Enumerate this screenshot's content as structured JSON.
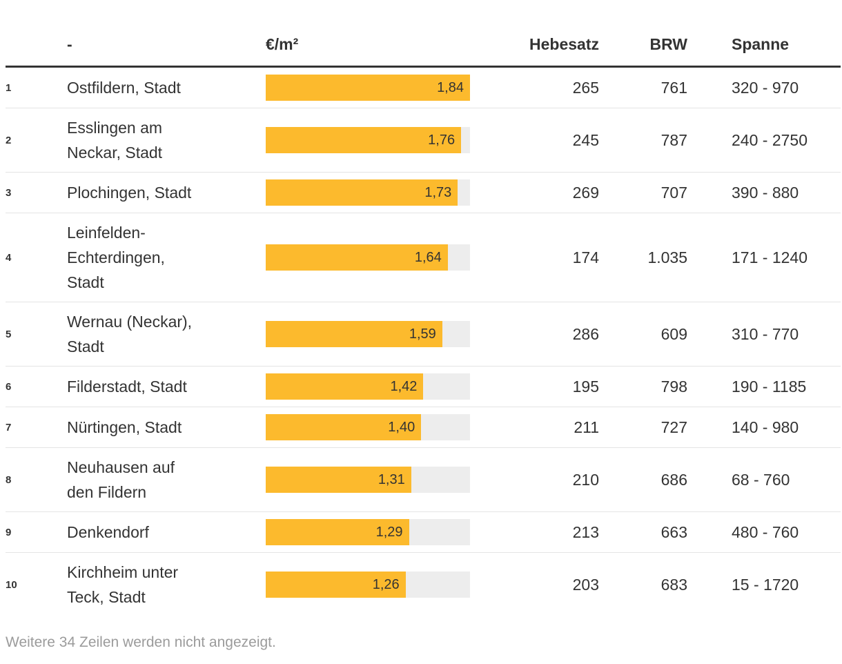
{
  "chart_data": {
    "type": "table",
    "columns": [
      "",
      "-",
      "€/m²",
      "Hebesatz",
      "BRW",
      "Spanne"
    ],
    "bar_column": "€/m²",
    "bar_axis_max": 1.84,
    "rows": [
      {
        "rank": "1",
        "name": "Ostfildern, Stadt",
        "value": 1.84,
        "value_label": "1,84",
        "bar_pct": 100,
        "hebesatz": "265",
        "brw": "761",
        "spanne": "320 - 970"
      },
      {
        "rank": "2",
        "name": "Esslingen am Neckar, Stadt",
        "value": 1.76,
        "value_label": "1,76",
        "bar_pct": 95.65,
        "hebesatz": "245",
        "brw": "787",
        "spanne": "240 - 2750"
      },
      {
        "rank": "3",
        "name": "Plochingen, Stadt",
        "value": 1.73,
        "value_label": "1,73",
        "bar_pct": 94.02,
        "hebesatz": "269",
        "brw": "707",
        "spanne": "390 - 880"
      },
      {
        "rank": "4",
        "name": "Leinfelden-Echterdingen, Stadt",
        "value": 1.64,
        "value_label": "1,64",
        "bar_pct": 89.13,
        "hebesatz": "174",
        "brw": "1.035",
        "spanne": "171 - 1240"
      },
      {
        "rank": "5",
        "name": "Wernau (Neckar), Stadt",
        "value": 1.59,
        "value_label": "1,59",
        "bar_pct": 86.41,
        "hebesatz": "286",
        "brw": "609",
        "spanne": "310 - 770"
      },
      {
        "rank": "6",
        "name": "Filderstadt, Stadt",
        "value": 1.42,
        "value_label": "1,42",
        "bar_pct": 77.17,
        "hebesatz": "195",
        "brw": "798",
        "spanne": "190 - 1185"
      },
      {
        "rank": "7",
        "name": "Nürtingen, Stadt",
        "value": 1.4,
        "value_label": "1,40",
        "bar_pct": 76.09,
        "hebesatz": "211",
        "brw": "727",
        "spanne": "140 - 980"
      },
      {
        "rank": "8",
        "name": "Neuhausen auf den Fildern",
        "value": 1.31,
        "value_label": "1,31",
        "bar_pct": 71.2,
        "hebesatz": "210",
        "brw": "686",
        "spanne": "68 - 760"
      },
      {
        "rank": "9",
        "name": "Denkendorf",
        "value": 1.29,
        "value_label": "1,29",
        "bar_pct": 70.11,
        "hebesatz": "213",
        "brw": "663",
        "spanne": "480 - 760"
      },
      {
        "rank": "10",
        "name": "Kirchheim unter Teck, Stadt",
        "value": 1.26,
        "value_label": "1,26",
        "bar_pct": 68.48,
        "hebesatz": "203",
        "brw": "683",
        "spanne": "15 - 1720"
      }
    ],
    "footer_note": "Weitere 34 Zeilen werden nicht angezeigt.",
    "layout": {
      "grid": "off",
      "bar_labels": "inside-right"
    }
  },
  "colors": {
    "bar": "#fcba2d",
    "bar_track": "#ededed",
    "header_border": "#333333",
    "text": "#333333",
    "muted_text": "#9b9b9b",
    "row_separator": "#e4e4e4"
  }
}
